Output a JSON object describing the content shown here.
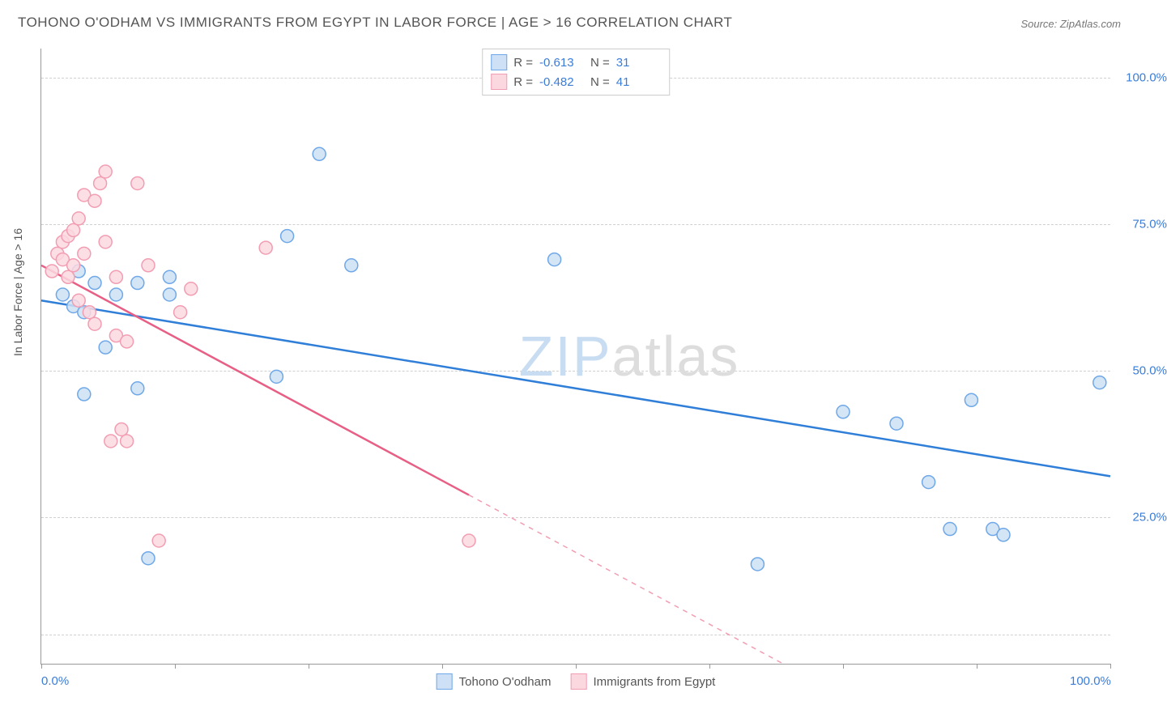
{
  "title": "TOHONO O'ODHAM VS IMMIGRANTS FROM EGYPT IN LABOR FORCE | AGE > 16 CORRELATION CHART",
  "source": "Source: ZipAtlas.com",
  "watermark": {
    "part1": "ZIP",
    "part2": "atlas"
  },
  "y_axis_title": "In Labor Force | Age > 16",
  "chart": {
    "type": "scatter",
    "xlim": [
      0,
      100
    ],
    "ylim": [
      0,
      105
    ],
    "x_ticks": [
      0,
      12.5,
      25,
      37.5,
      50,
      62.5,
      75,
      87.5,
      100
    ],
    "x_tick_labels": {
      "0": "0.0%",
      "100": "100.0%"
    },
    "y_gridlines": [
      5,
      25,
      50,
      75,
      100
    ],
    "y_tick_labels": {
      "25": "25.0%",
      "50": "50.0%",
      "75": "75.0%",
      "100": "100.0%"
    },
    "background_color": "#ffffff",
    "grid_color": "#d0d0d0",
    "marker_radius": 8,
    "marker_stroke_width": 1.5,
    "line_width": 2.5,
    "series": [
      {
        "name": "Tohono O'odham",
        "color_fill": "#cde0f5",
        "color_stroke": "#6fa8e8",
        "line_color": "#2f7ed8",
        "R": "-0.613",
        "N": "31",
        "points": [
          [
            2,
            63
          ],
          [
            3,
            61
          ],
          [
            3.5,
            67
          ],
          [
            4,
            60
          ],
          [
            4,
            46
          ],
          [
            5,
            65
          ],
          [
            6,
            54
          ],
          [
            7,
            63
          ],
          [
            9,
            47
          ],
          [
            9,
            65
          ],
          [
            10,
            18
          ],
          [
            12,
            66
          ],
          [
            12,
            63
          ],
          [
            22,
            49
          ],
          [
            23,
            73
          ],
          [
            26,
            87
          ],
          [
            29,
            68
          ],
          [
            48,
            69
          ],
          [
            67,
            17
          ],
          [
            75,
            43
          ],
          [
            80,
            41
          ],
          [
            83,
            31
          ],
          [
            87,
            45
          ],
          [
            89,
            23
          ],
          [
            90,
            22
          ],
          [
            99,
            48
          ],
          [
            85,
            23
          ]
        ],
        "regression": {
          "x1": 0,
          "y1": 62,
          "x2": 100,
          "y2": 32,
          "dash_from_x": null
        }
      },
      {
        "name": "Immigrants from Egypt",
        "color_fill": "#fbd8e0",
        "color_stroke": "#f29db2",
        "line_color": "#e85f85",
        "R": "-0.482",
        "N": "41",
        "points": [
          [
            1,
            67
          ],
          [
            1.5,
            70
          ],
          [
            2,
            69
          ],
          [
            2,
            72
          ],
          [
            2.5,
            66
          ],
          [
            2.5,
            73
          ],
          [
            3,
            68
          ],
          [
            3,
            74
          ],
          [
            3.5,
            62
          ],
          [
            3.5,
            76
          ],
          [
            4,
            70
          ],
          [
            4,
            80
          ],
          [
            4.5,
            60
          ],
          [
            5,
            58
          ],
          [
            5,
            79
          ],
          [
            5.5,
            82
          ],
          [
            6,
            84
          ],
          [
            6,
            72
          ],
          [
            6.5,
            38
          ],
          [
            7,
            66
          ],
          [
            7,
            56
          ],
          [
            7.5,
            40
          ],
          [
            8,
            38
          ],
          [
            8,
            55
          ],
          [
            9,
            82
          ],
          [
            10,
            68
          ],
          [
            11,
            21
          ],
          [
            13,
            60
          ],
          [
            14,
            64
          ],
          [
            21,
            71
          ],
          [
            40,
            21
          ]
        ],
        "regression": {
          "x1": 0,
          "y1": 68,
          "x2": 100,
          "y2": -30,
          "dash_from_x": 40
        }
      }
    ]
  },
  "legend_top": [
    {
      "swatch_fill": "#cde0f5",
      "swatch_stroke": "#6fa8e8",
      "r_label": "R =",
      "r_value": "-0.613",
      "n_label": "N =",
      "n_value": "31"
    },
    {
      "swatch_fill": "#fbd8e0",
      "swatch_stroke": "#f29db2",
      "r_label": "R =",
      "r_value": "-0.482",
      "n_label": "N =",
      "n_value": "41"
    }
  ],
  "legend_bottom": [
    {
      "swatch_fill": "#cde0f5",
      "swatch_stroke": "#6fa8e8",
      "label": "Tohono O'odham"
    },
    {
      "swatch_fill": "#fbd8e0",
      "swatch_stroke": "#f29db2",
      "label": "Immigrants from Egypt"
    }
  ]
}
